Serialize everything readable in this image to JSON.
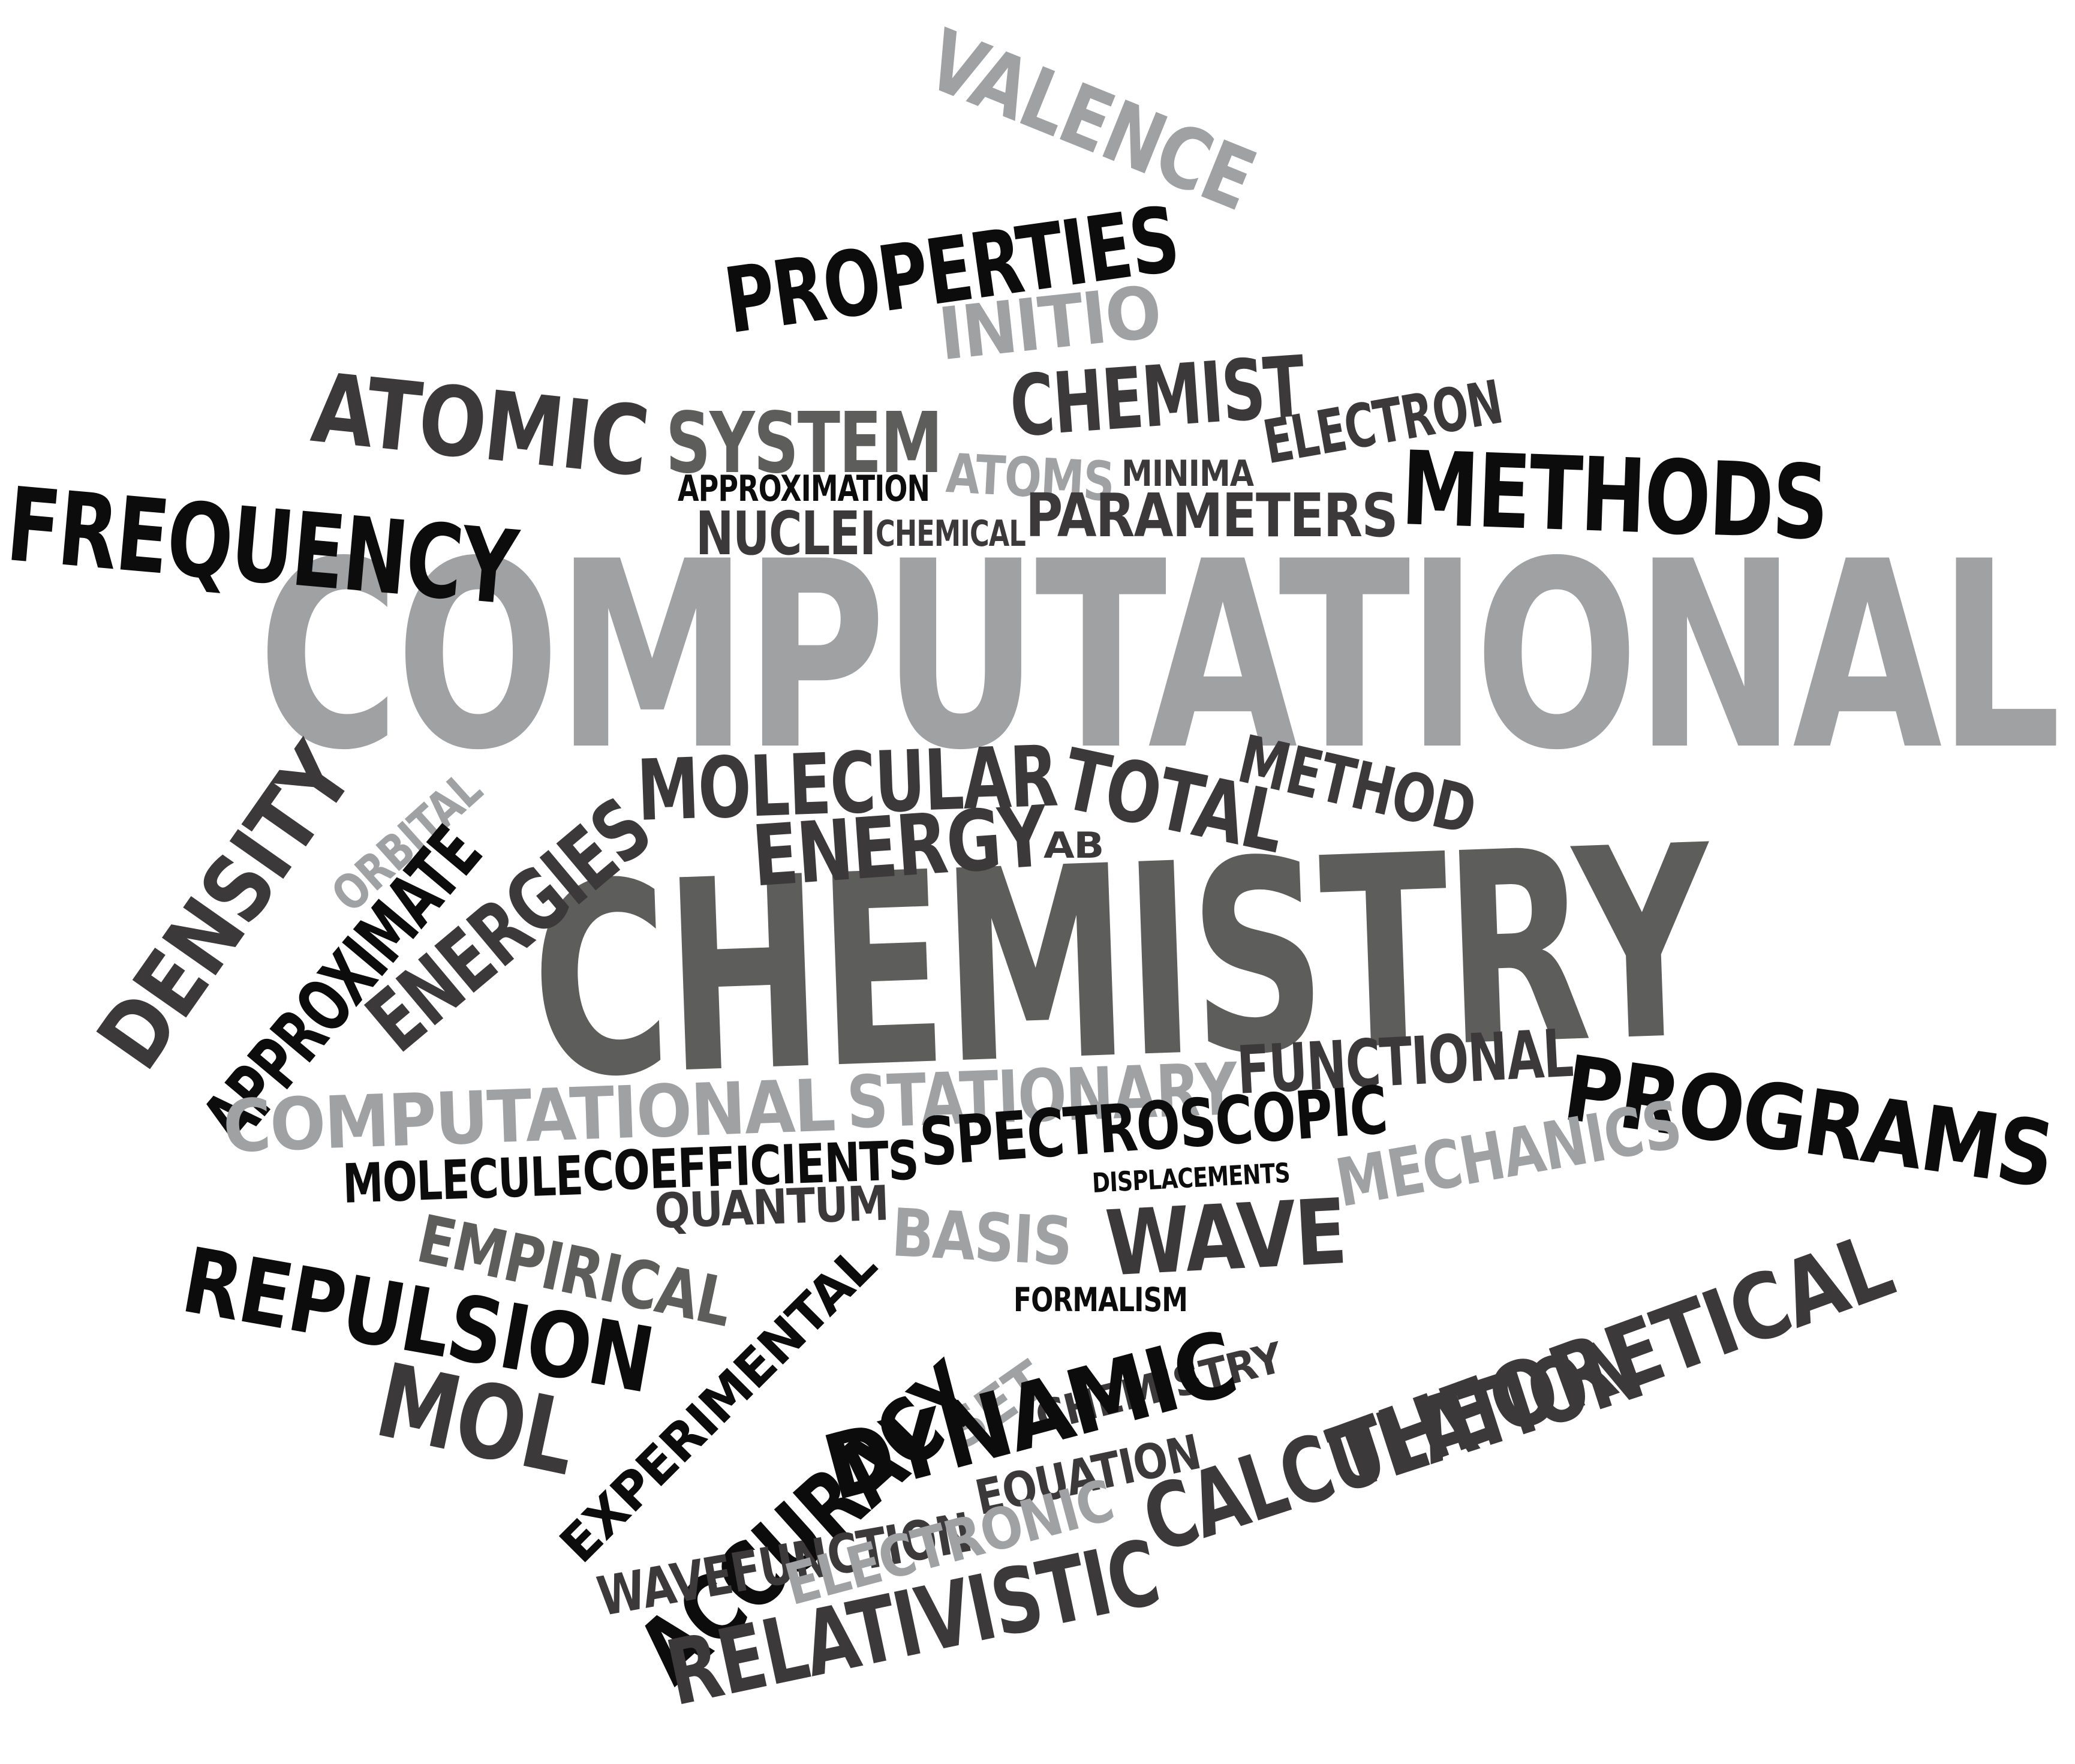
{
  "title": "",
  "words": [
    {
      "id": "computational-main",
      "text": "COMPUTATIONAL",
      "shade": "light-gray"
    },
    {
      "id": "chemistry-main",
      "text": "CHEMISTRY",
      "shade": "dark-gray"
    },
    {
      "id": "valence",
      "text": "VALENCE",
      "shade": "light-gray"
    },
    {
      "id": "properties",
      "text": "PROPERTIES",
      "shade": "black"
    },
    {
      "id": "initio",
      "text": "INITIO",
      "shade": "light-gray"
    },
    {
      "id": "atomic",
      "text": "ATOMIC",
      "shade": "dark-gray"
    },
    {
      "id": "system",
      "text": "SYSTEM",
      "shade": "mid-gray"
    },
    {
      "id": "chemist",
      "text": "CHEMIST",
      "shade": "dark-gray"
    },
    {
      "id": "electron",
      "text": "ELECTRON",
      "shade": "dark-gray"
    },
    {
      "id": "frequency",
      "text": "FREQUENCY",
      "shade": "black"
    },
    {
      "id": "approximation",
      "text": "APPROXIMATION",
      "shade": "black"
    },
    {
      "id": "atoms",
      "text": "ATOMS",
      "shade": "light-gray"
    },
    {
      "id": "minima",
      "text": "MINIMA",
      "shade": "dark-gray"
    },
    {
      "id": "methods",
      "text": "METHODS",
      "shade": "black"
    },
    {
      "id": "nuclei",
      "text": "NUCLEI",
      "shade": "dark-gray"
    },
    {
      "id": "chemical",
      "text": "CHEMICAL",
      "shade": "dark-gray"
    },
    {
      "id": "parameters",
      "text": "PARAMETERS",
      "shade": "dark-gray"
    },
    {
      "id": "density",
      "text": "DENSITY",
      "shade": "dark-gray"
    },
    {
      "id": "orbital",
      "text": "ORBITAL",
      "shade": "light-gray"
    },
    {
      "id": "approximate",
      "text": "APPROXIMATE",
      "shade": "black"
    },
    {
      "id": "energies",
      "text": "ENERGIES",
      "shade": "dark-gray"
    },
    {
      "id": "molecular",
      "text": "MOLECULAR",
      "shade": "dark-gray"
    },
    {
      "id": "total",
      "text": "TOTAL",
      "shade": "dark-gray"
    },
    {
      "id": "method",
      "text": "METHOD",
      "shade": "dark-gray"
    },
    {
      "id": "energy",
      "text": "ENERGY",
      "shade": "dark-gray"
    },
    {
      "id": "ab",
      "text": "AB",
      "shade": "dark-gray"
    },
    {
      "id": "computational-small",
      "text": "COMPUTATIONAL",
      "shade": "light-gray"
    },
    {
      "id": "stationary",
      "text": "STATIONARY",
      "shade": "light-gray"
    },
    {
      "id": "functional",
      "text": "FUNCTIONAL",
      "shade": "dark-gray"
    },
    {
      "id": "programs",
      "text": "PROGRAMS",
      "shade": "black"
    },
    {
      "id": "molecule",
      "text": "MOLECULE",
      "shade": "black"
    },
    {
      "id": "coefficients",
      "text": "COEFFICIENTS",
      "shade": "black"
    },
    {
      "id": "spectroscopic",
      "text": "SPECTROSCOPIC",
      "shade": "black"
    },
    {
      "id": "displacements",
      "text": "DISPLACEMENTS",
      "shade": "black"
    },
    {
      "id": "mechanics",
      "text": "MECHANICS",
      "shade": "light-gray"
    },
    {
      "id": "quantum",
      "text": "QUANTUM",
      "shade": "dark-gray"
    },
    {
      "id": "basis",
      "text": "BASIS",
      "shade": "light-gray"
    },
    {
      "id": "wave",
      "text": "WAVE",
      "shade": "dark-gray"
    },
    {
      "id": "empirical",
      "text": "EMPIRICAL",
      "shade": "mid-gray"
    },
    {
      "id": "theoretical",
      "text": "THEORETICAL",
      "shade": "dark-gray"
    },
    {
      "id": "repulsion",
      "text": "REPULSION",
      "shade": "black"
    },
    {
      "id": "formalism",
      "text": "FORMALISM",
      "shade": "black"
    },
    {
      "id": "chemistry-small",
      "text": "CHEMISTRY",
      "shade": "dark-gray"
    },
    {
      "id": "experimental",
      "text": "EXPERIMENTAL",
      "shade": "black"
    },
    {
      "id": "set",
      "text": "SET",
      "shade": "light-gray"
    },
    {
      "id": "accuracy",
      "text": "ACCURACY",
      "shade": "black"
    },
    {
      "id": "mol",
      "text": "MOL",
      "shade": "dark-gray"
    },
    {
      "id": "dynamic",
      "text": "DYNAMIC",
      "shade": "black"
    },
    {
      "id": "calculation",
      "text": "CALCULATION",
      "shade": "dark-gray"
    },
    {
      "id": "wavefunction",
      "text": "WAVEFUNCTION",
      "shade": "dark-gray"
    },
    {
      "id": "equation",
      "text": "EQUATION",
      "shade": "dark-gray"
    },
    {
      "id": "electronic",
      "text": "ELECTRONIC",
      "shade": "light-gray"
    },
    {
      "id": "relativistic",
      "text": "RELATIVISTIC",
      "shade": "dark-gray"
    }
  ],
  "palette": {
    "black": "#0c0c0c",
    "dark-gray": "#3c393b",
    "mid-gray": "#5d5d5c",
    "light-gray": "#a0a1a3"
  }
}
